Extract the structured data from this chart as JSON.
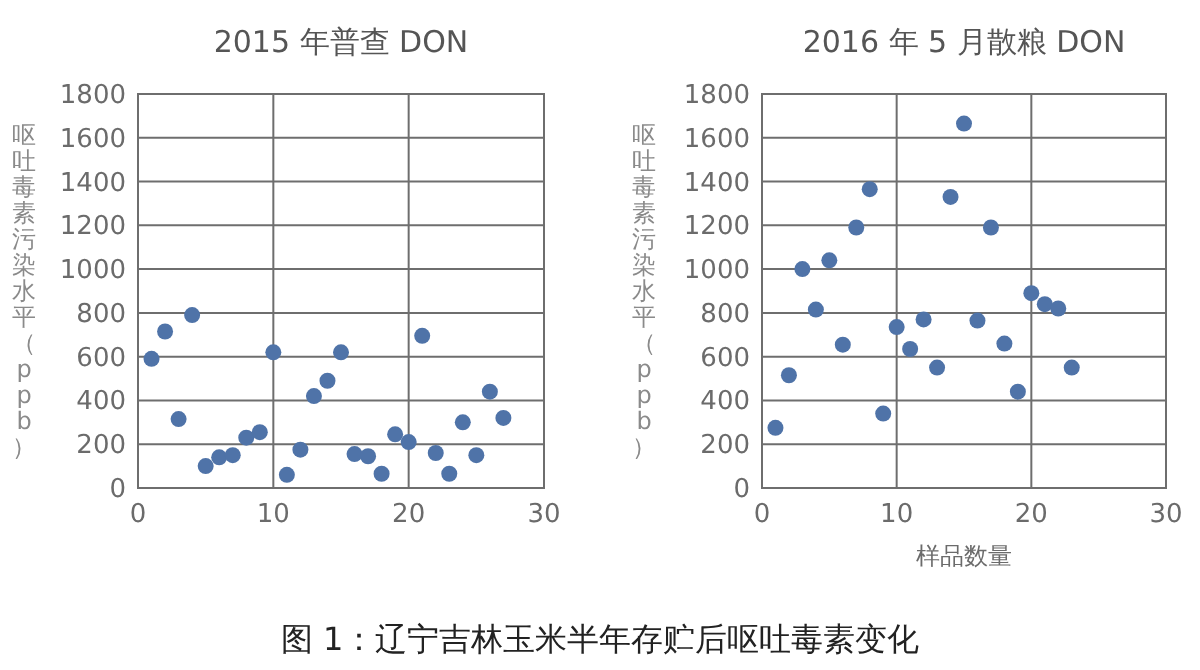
{
  "chart_data": [
    {
      "type": "scatter",
      "title": "2015 年普查 DON",
      "ylabel": "呕吐毒素污染水平（ppb）",
      "x": [
        1,
        2,
        3,
        4,
        5,
        6,
        7,
        8,
        9,
        10,
        11,
        12,
        13,
        14,
        15,
        16,
        17,
        18,
        19,
        20,
        21,
        22,
        23,
        24,
        25,
        26,
        27
      ],
      "values": [
        590,
        715,
        315,
        790,
        100,
        140,
        150,
        230,
        255,
        620,
        60,
        175,
        420,
        490,
        620,
        155,
        145,
        65,
        245,
        210,
        695,
        160,
        65,
        300,
        150,
        440,
        320
      ],
      "color": "#4f73a8",
      "marker": "circle",
      "grid": true,
      "xlim": [
        0,
        30
      ],
      "ylim": [
        0,
        1800
      ],
      "xticks": [
        0,
        10,
        20,
        30
      ],
      "yticks": [
        0,
        200,
        400,
        600,
        800,
        1000,
        1200,
        1400,
        1600,
        1800
      ],
      "annotations": [
        "图 1：辽宁吉林玉米半年存贮后呕吐毒素变化"
      ]
    },
    {
      "type": "scatter",
      "title": "2016 年 5 月散粮 DON",
      "xlabel": "样品数量",
      "ylabel": "呕吐毒素污染水平（ppb）",
      "x": [
        1,
        2,
        3,
        4,
        5,
        6,
        7,
        8,
        9,
        10,
        11,
        12,
        13,
        14,
        15,
        16,
        17,
        18,
        19,
        20,
        21,
        22,
        23
      ],
      "values": [
        275,
        515,
        1000,
        815,
        1040,
        655,
        1190,
        1365,
        340,
        735,
        635,
        770,
        550,
        1330,
        1665,
        765,
        1190,
        660,
        440,
        890,
        840,
        820,
        550
      ],
      "color": "#4f73a8",
      "marker": "circle",
      "grid": true,
      "xlim": [
        0,
        30
      ],
      "ylim": [
        0,
        1800
      ],
      "xticks": [
        0,
        10,
        20,
        30
      ],
      "yticks": [
        0,
        200,
        400,
        600,
        800,
        1000,
        1200,
        1400,
        1600,
        1800
      ]
    }
  ]
}
